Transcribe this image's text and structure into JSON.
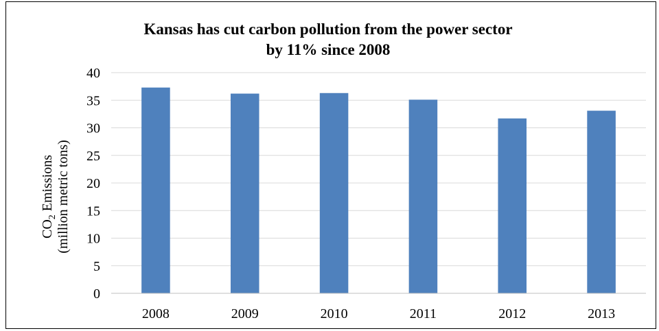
{
  "chart_data": {
    "type": "bar",
    "title_line1": "Kansas has cut carbon pollution from the power sector",
    "title_line2": "by 11% since 2008",
    "ylabel_line1_prefix": "CO",
    "ylabel_subscript": "2",
    "ylabel_line1_suffix": " Emissions",
    "ylabel_line2": "(million metric tons)",
    "xlabel": "",
    "categories": [
      "2008",
      "2009",
      "2010",
      "2011",
      "2012",
      "2013"
    ],
    "values": [
      37.3,
      36.2,
      36.3,
      35.1,
      31.7,
      33.1
    ],
    "ylim": [
      0,
      40
    ],
    "yticks": [
      0,
      5,
      10,
      15,
      20,
      25,
      30,
      35,
      40
    ],
    "grid": true,
    "legend": "none",
    "colors": {
      "bar": "#4F81BD",
      "grid": "#D9D9D9",
      "axis": "#BFBFBF"
    }
  }
}
